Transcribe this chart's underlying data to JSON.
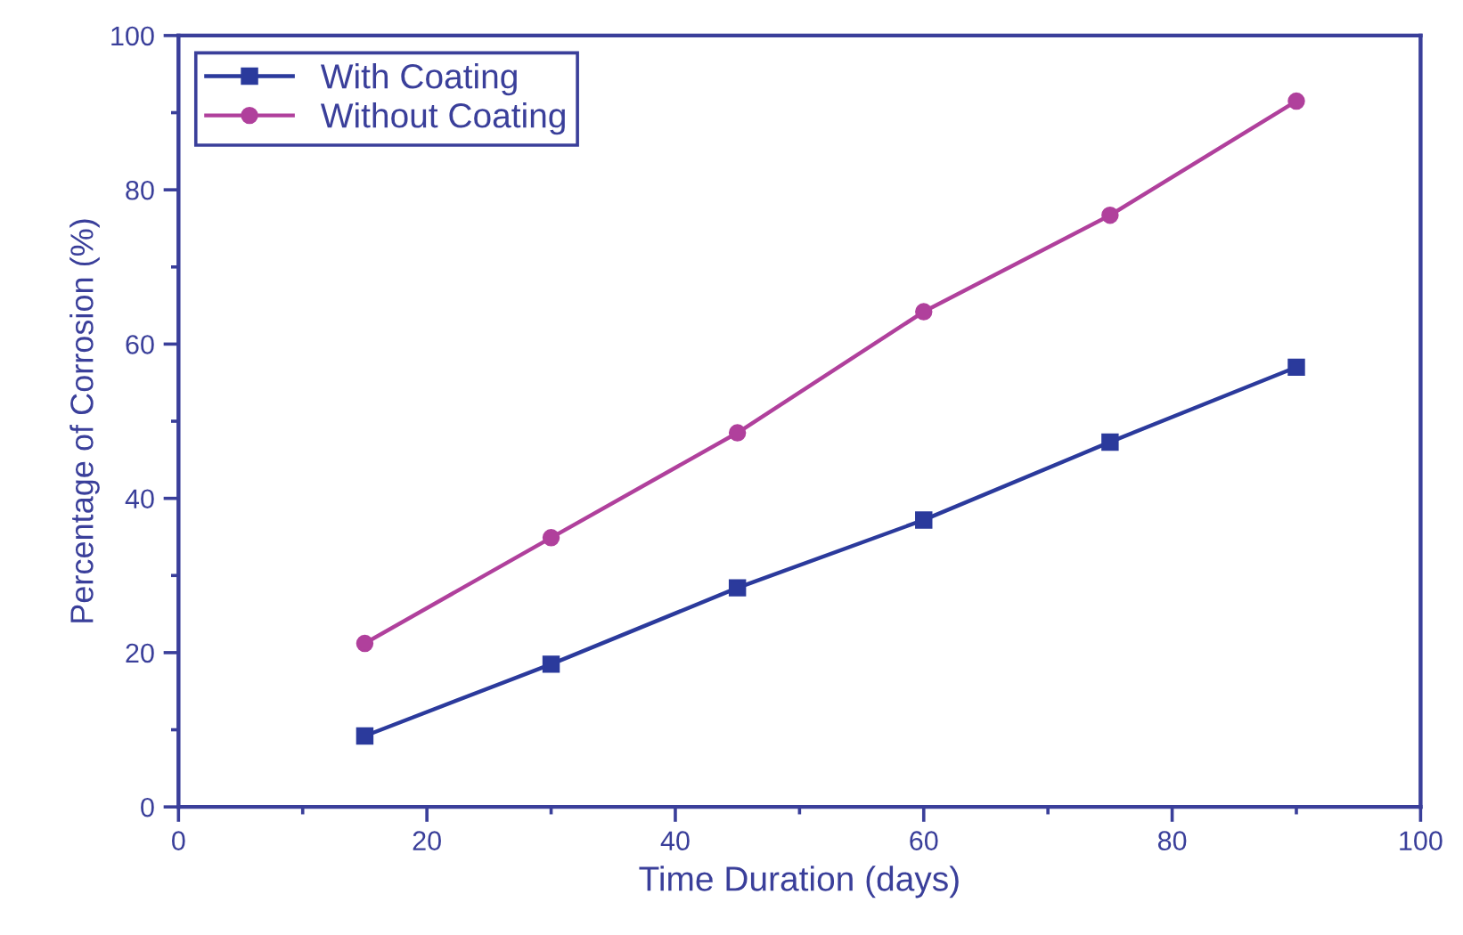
{
  "chart_data": {
    "type": "line",
    "xlabel": "Time Duration (days)",
    "ylabel": "Percentage of Corrosion (%)",
    "x": [
      15,
      30,
      45,
      60,
      75,
      90
    ],
    "series": [
      {
        "name": "With Coating",
        "color": "#2b3a9c",
        "marker": "square",
        "values": [
          9.2,
          18.5,
          28.4,
          37.2,
          47.3,
          57.0
        ]
      },
      {
        "name": "Without Coating",
        "color": "#b0409c",
        "marker": "circle",
        "values": [
          21.2,
          34.9,
          48.5,
          64.2,
          76.7,
          91.5
        ]
      }
    ],
    "xlim": [
      0,
      100
    ],
    "ylim": [
      0,
      100
    ],
    "xticks": [
      0,
      {
        "value": 10,
        "label": null
      },
      20,
      {
        "value": 30,
        "label": null
      },
      40,
      {
        "value": 50,
        "label": null
      },
      60,
      {
        "value": 70,
        "label": null
      },
      80,
      {
        "value": 90,
        "label": null
      },
      100
    ],
    "yticks": [
      0,
      {
        "value": 10,
        "label": null
      },
      20,
      {
        "value": 30,
        "label": null
      },
      40,
      {
        "value": 50,
        "label": null
      },
      60,
      {
        "value": 70,
        "label": null
      },
      80,
      {
        "value": 90,
        "label": null
      },
      100
    ],
    "grid": false,
    "legend": "top left",
    "line_style": "solid"
  }
}
